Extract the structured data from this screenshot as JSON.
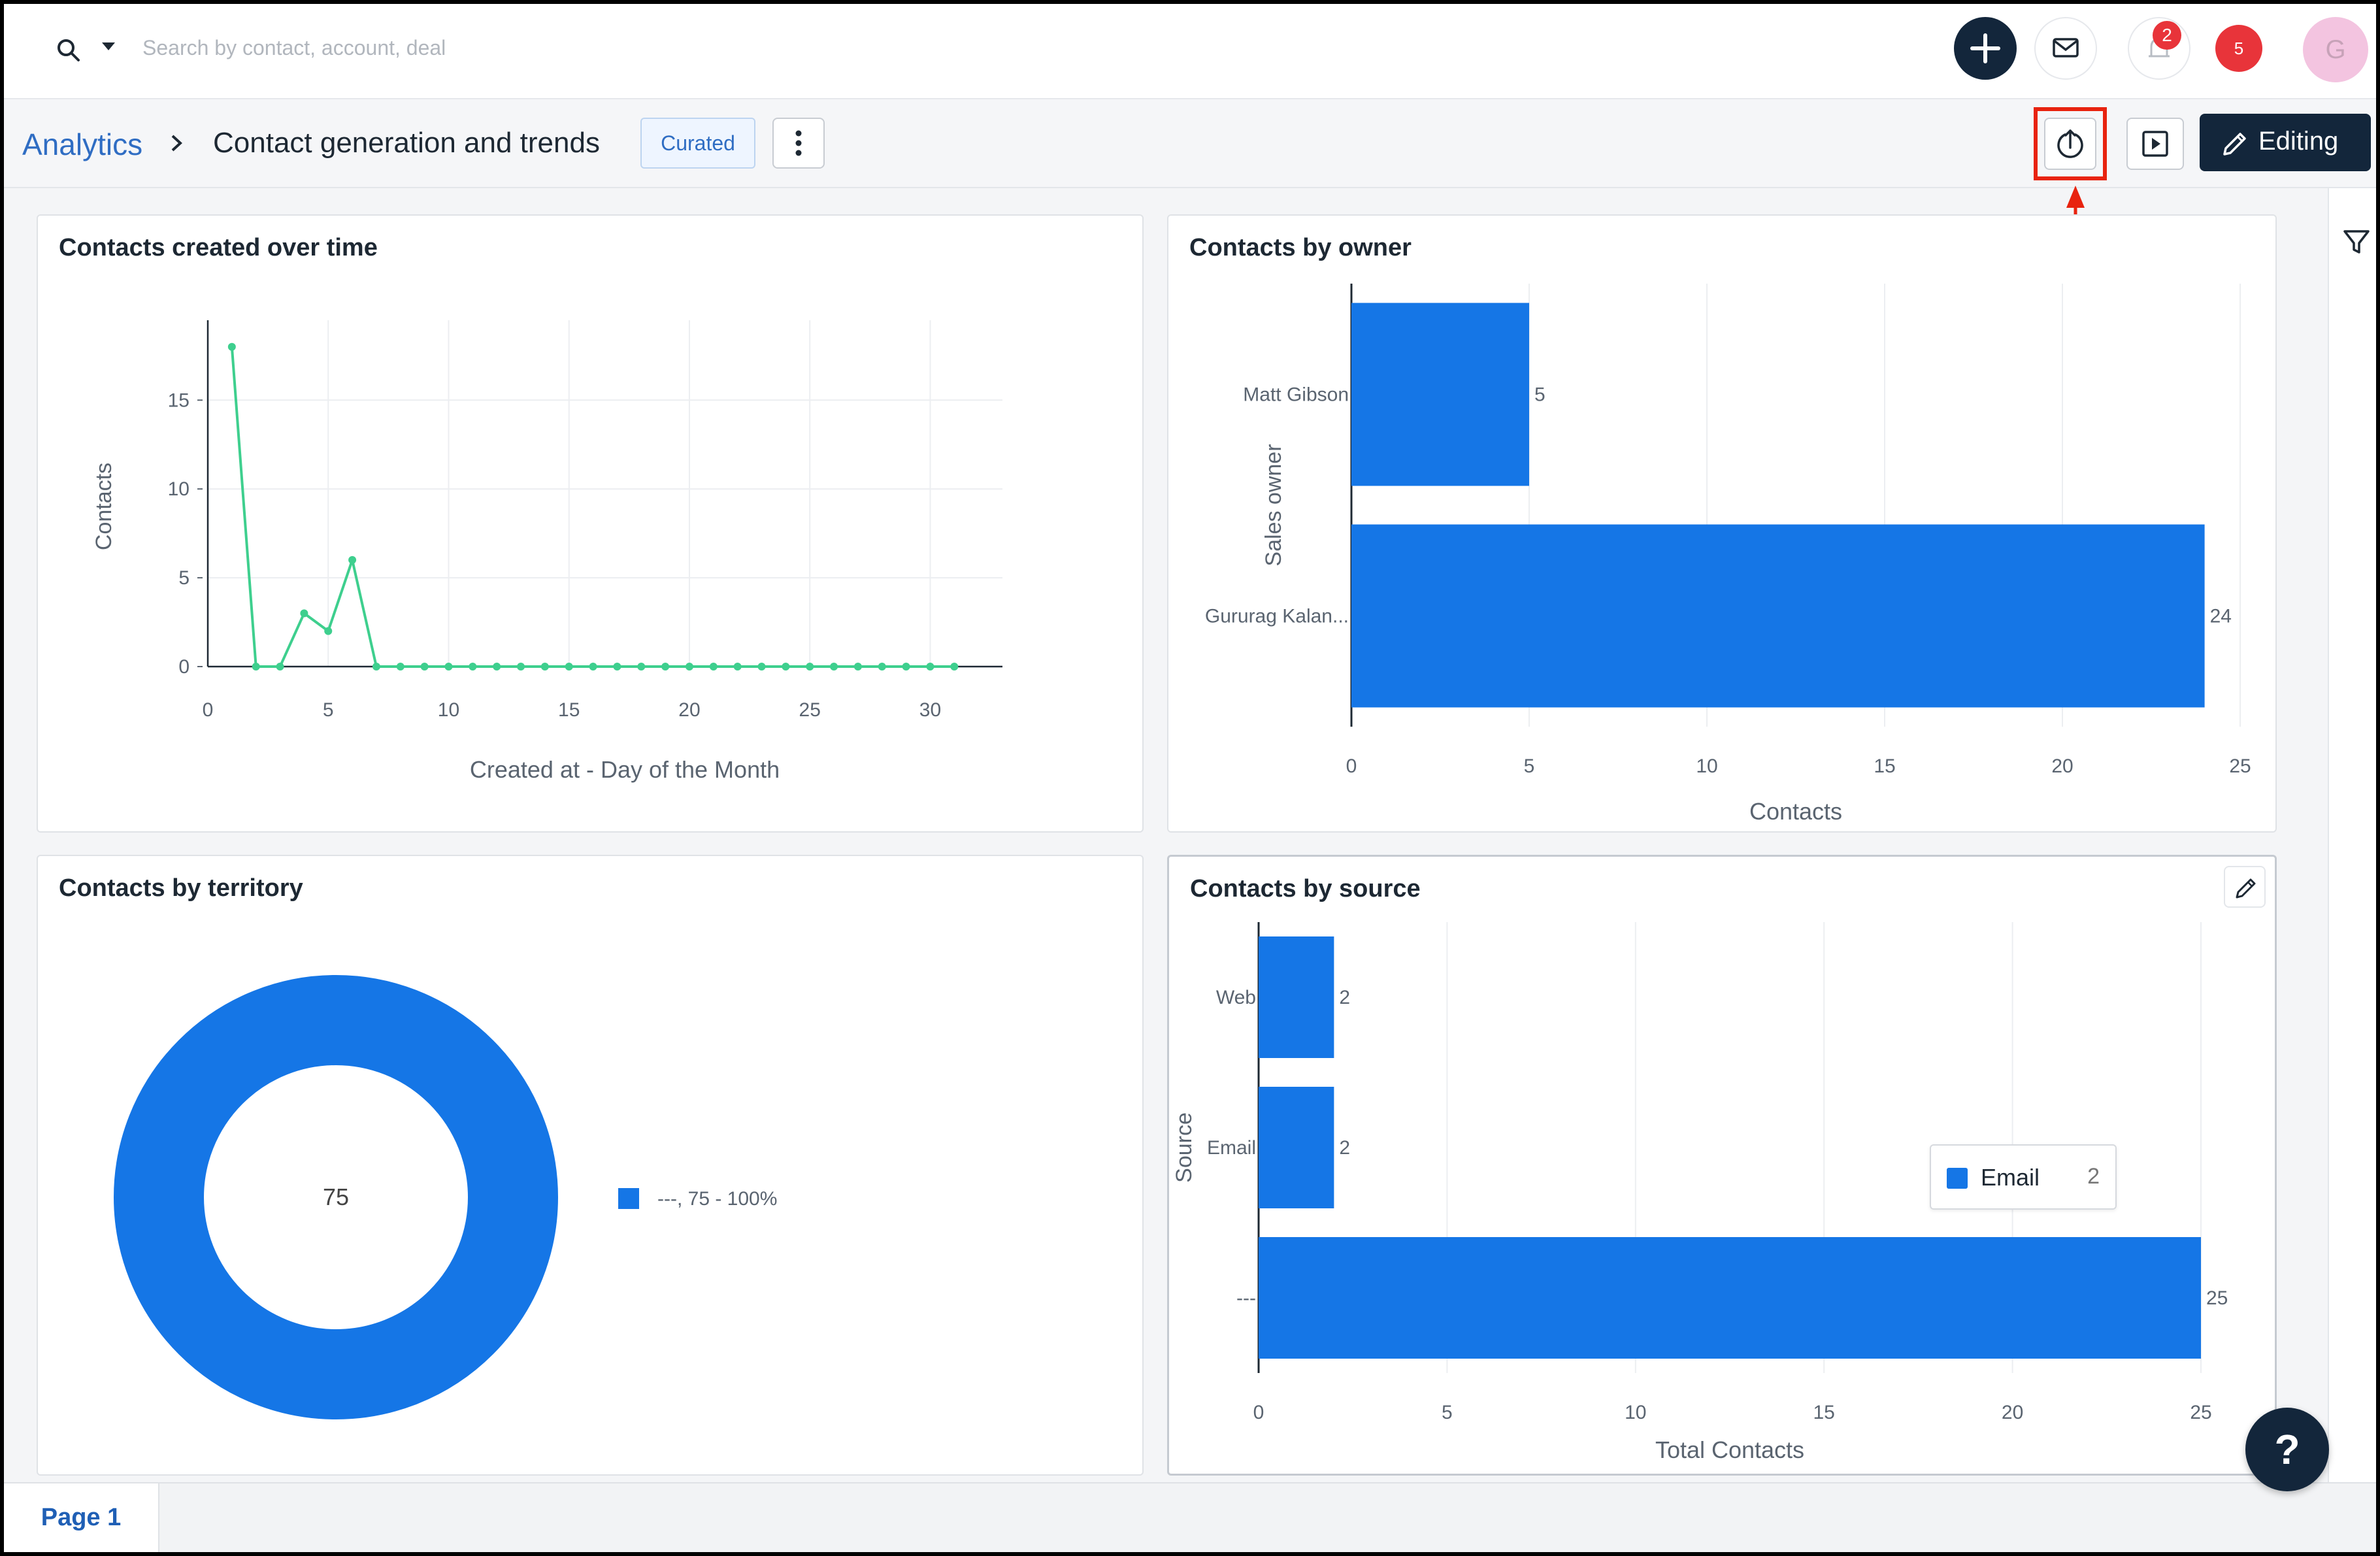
{
  "topbar": {
    "search_placeholder": "Search by contact, account, deal",
    "notifications_count": "2",
    "alerts_count": "5",
    "avatar_initial": "G"
  },
  "header": {
    "breadcrumb_root": "Analytics",
    "title": "Contact generation and trends",
    "badge": "Curated",
    "editing_label": "Editing"
  },
  "cards": {
    "time": {
      "title": "Contacts created over time"
    },
    "owner": {
      "title": "Contacts by owner"
    },
    "territory": {
      "title": "Contacts by territory"
    },
    "source": {
      "title": "Contacts by source"
    }
  },
  "footer": {
    "page_tab": "Page 1"
  },
  "help_label": "?",
  "colors": {
    "primary": "#13263b",
    "bar": "#1576e6",
    "line": "#3ecf8e",
    "link": "#2f6dc3",
    "highlight": "#e8230f"
  },
  "chart_data": [
    {
      "type": "line",
      "title": "Contacts created over time",
      "xlabel": "Created at - Day of the Month",
      "ylabel": "Contacts",
      "x": [
        1,
        2,
        3,
        4,
        5,
        6,
        7,
        8,
        9,
        10,
        11,
        12,
        13,
        14,
        15,
        16,
        17,
        18,
        19,
        20,
        21,
        22,
        23,
        24,
        25,
        26,
        27,
        28,
        29,
        30,
        31
      ],
      "y": [
        18,
        0,
        0,
        3,
        2,
        6,
        0,
        0,
        0,
        0,
        0,
        0,
        0,
        0,
        0,
        0,
        0,
        0,
        0,
        0,
        0,
        0,
        0,
        0,
        0,
        0,
        0,
        0,
        0,
        0,
        0
      ],
      "xticks": [
        0,
        5,
        10,
        15,
        20,
        25,
        30
      ],
      "yticks": [
        0,
        5,
        10,
        15
      ],
      "xlim": [
        0,
        33
      ],
      "ylim": [
        0,
        19.5
      ]
    },
    {
      "type": "bar",
      "orientation": "horizontal",
      "title": "Contacts by owner",
      "xlabel": "Contacts",
      "ylabel": "Sales owner",
      "categories": [
        "Matt Gibson",
        "Gururag Kalan..."
      ],
      "values": [
        5,
        24
      ],
      "xticks": [
        0,
        5,
        10,
        15,
        20,
        25
      ],
      "xlim": [
        0,
        25
      ]
    },
    {
      "type": "pie",
      "style": "donut",
      "title": "Contacts by territory",
      "center_label": "75",
      "slices": [
        {
          "label": "---",
          "value": 75,
          "percent": "100%"
        }
      ],
      "legend_text": "---,  75 - 100%"
    },
    {
      "type": "bar",
      "orientation": "horizontal",
      "title": "Contacts by source",
      "xlabel": "Total Contacts",
      "ylabel": "Source",
      "categories": [
        "Web",
        "Email",
        "---"
      ],
      "values": [
        2,
        2,
        25
      ],
      "xticks": [
        0,
        5,
        10,
        15,
        20,
        25
      ],
      "xlim": [
        0,
        25
      ],
      "tooltip": {
        "label": "Email",
        "value": "2"
      }
    }
  ]
}
